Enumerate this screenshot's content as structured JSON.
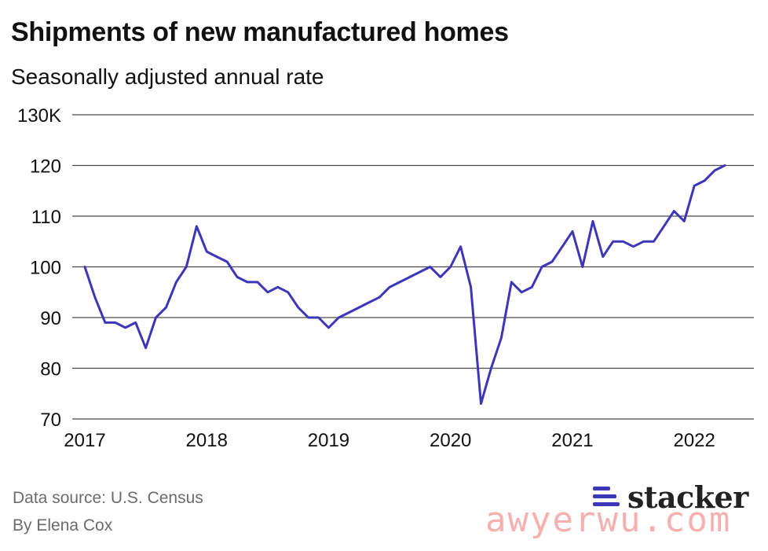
{
  "header": {
    "title": "Shipments of new manufactured homes",
    "subtitle": "Seasonally adjusted annual rate"
  },
  "footer": {
    "source": "Data source: U.S. Census",
    "byline": "By Elena Cox"
  },
  "branding": {
    "logo_text": "stacker",
    "watermark": "awyerwu.com",
    "accent_color": "#3d36b8"
  },
  "chart_data": {
    "type": "line",
    "title": "Shipments of new manufactured homes",
    "subtitle": "Seasonally adjusted annual rate",
    "xlabel": "",
    "ylabel": "",
    "ylim": [
      70,
      130
    ],
    "xlim": [
      2017.0,
      2022.5
    ],
    "yticks": [
      {
        "value": 130,
        "label": "130K"
      },
      {
        "value": 120,
        "label": "120"
      },
      {
        "value": 110,
        "label": "110"
      },
      {
        "value": 100,
        "label": "100"
      },
      {
        "value": 90,
        "label": "90"
      },
      {
        "value": 80,
        "label": "80"
      },
      {
        "value": 70,
        "label": "70"
      }
    ],
    "xticks": [
      {
        "value": 2017,
        "label": "2017"
      },
      {
        "value": 2018,
        "label": "2018"
      },
      {
        "value": 2019,
        "label": "2019"
      },
      {
        "value": 2020,
        "label": "2020"
      },
      {
        "value": 2021,
        "label": "2021"
      },
      {
        "value": 2022,
        "label": "2022"
      }
    ],
    "grid": "horizontal",
    "line_color": "#3d36b8",
    "series": [
      {
        "x": [
          2017.0,
          2017.083,
          2017.167,
          2017.25,
          2017.333,
          2017.417,
          2017.5,
          2017.583,
          2017.667,
          2017.75,
          2017.833,
          2017.917,
          2018.0,
          2018.083,
          2018.167,
          2018.25,
          2018.333,
          2018.417,
          2018.5,
          2018.583,
          2018.667,
          2018.75,
          2018.833,
          2018.917,
          2019.0,
          2019.083,
          2019.167,
          2019.25,
          2019.333,
          2019.417,
          2019.5,
          2019.583,
          2019.667,
          2019.75,
          2019.833,
          2019.917,
          2020.0,
          2020.083,
          2020.167,
          2020.25,
          2020.333,
          2020.417,
          2020.5,
          2020.583,
          2020.667,
          2020.75,
          2020.833,
          2020.917,
          2021.0,
          2021.083,
          2021.167,
          2021.25,
          2021.333,
          2021.417,
          2021.5,
          2021.583,
          2021.667,
          2021.75,
          2021.833,
          2021.917,
          2022.0,
          2022.083,
          2022.167,
          2022.25
        ],
        "values": [
          100,
          94,
          89,
          89,
          88,
          89,
          84,
          90,
          92,
          97,
          100,
          108,
          103,
          102,
          101,
          98,
          97,
          97,
          95,
          96,
          95,
          92,
          90,
          90,
          88,
          90,
          91,
          92,
          93,
          94,
          96,
          97,
          98,
          99,
          100,
          98,
          100,
          104,
          96,
          73,
          80,
          86,
          97,
          95,
          96,
          100,
          101,
          104,
          107,
          100,
          109,
          102,
          105,
          105,
          104,
          105,
          105,
          108,
          111,
          109,
          116,
          117,
          119,
          120
        ]
      }
    ]
  }
}
